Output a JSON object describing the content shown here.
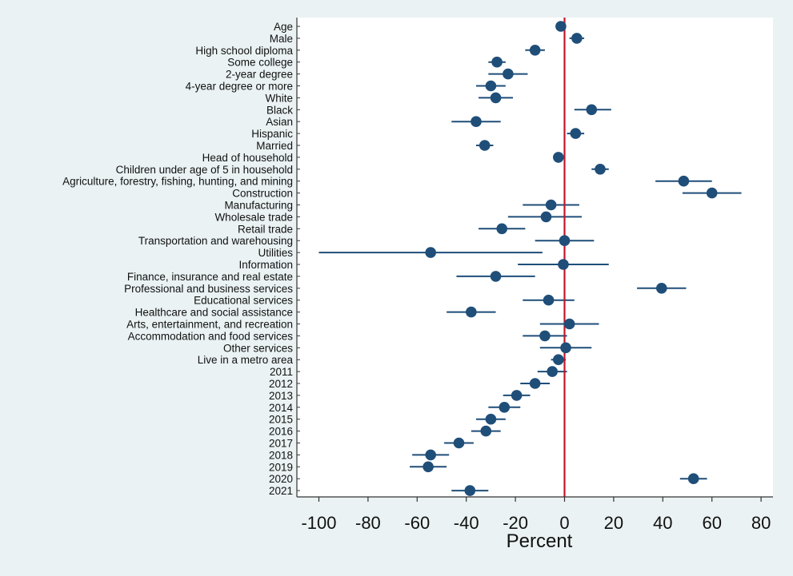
{
  "chart_data": {
    "type": "scatter",
    "title": "",
    "xlabel": "Percent",
    "ylabel": "",
    "xlim": [
      -106,
      85
    ],
    "x_ticks": [
      "-100",
      "-80",
      "-60",
      "-40",
      "-20",
      "0",
      "20",
      "40",
      "60",
      "80"
    ],
    "x_tick_values": [
      -100,
      -80,
      -60,
      -40,
      -20,
      0,
      20,
      40,
      60,
      80
    ],
    "reference_line_x": 0,
    "grid": false,
    "legend": "none",
    "colors": {
      "background": "#eaf2f3",
      "plot_area": "#ffffff",
      "marker": "#1f4e79",
      "reference_line": "#c0182b",
      "axis": "#333333"
    },
    "series": [
      {
        "categories": [
          "Age",
          "Male",
          "High school diploma",
          "Some college",
          "2-year degree",
          "4-year degree or more",
          "White",
          "Black",
          "Asian",
          "Hispanic",
          "Married",
          "Head of household",
          "Children under age of 5 in household",
          "Agriculture, forestry, fishing, hunting, and mining",
          "Construction",
          "Manufacturing",
          "Wholesale trade",
          "Retail trade",
          "Transportation and warehousing",
          "Utilities",
          "Information",
          "Finance, insurance and real estate",
          "Professional and business services",
          "Educational services",
          "Healthcare and social assistance",
          "Arts, entertainment, and recreation",
          "Accommodation and food services",
          "Other services",
          "Live in a metro area",
          "2011",
          "2012",
          "2013",
          "2014",
          "2015",
          "2016",
          "2017",
          "2018",
          "2019",
          "2020",
          "2021"
        ],
        "estimates": [
          -1.5,
          5,
          -12,
          -27.5,
          -23,
          -30,
          -28,
          11,
          -36,
          4.5,
          -32.5,
          -2.5,
          14.5,
          48.5,
          60,
          -5.5,
          -7.5,
          -25.5,
          0,
          -54.5,
          -0.5,
          -28,
          39.5,
          -6.5,
          -38,
          2,
          -8,
          0.5,
          -2.5,
          -5,
          -12,
          -19.5,
          -24.5,
          -30,
          -32,
          -43,
          -54.5,
          -55.5,
          52.5,
          -38.5
        ],
        "ci_low": [
          -2.5,
          2,
          -16,
          -31,
          -31,
          -36,
          -35,
          4,
          -46,
          1,
          -36,
          -4.5,
          11,
          37,
          48,
          -17,
          -23,
          -35,
          -12,
          -100,
          -19,
          -44,
          29.5,
          -17,
          -48,
          -10,
          -17,
          -10,
          -5.5,
          -11,
          -18,
          -25,
          -31,
          -36,
          -38,
          -49,
          -62,
          -63,
          47,
          -46
        ],
        "ci_high": [
          -0.5,
          8,
          -8,
          -24,
          -15,
          -24,
          -21,
          19,
          -26,
          8,
          -29,
          -0.5,
          18,
          60,
          72,
          6,
          7,
          -16,
          12,
          -9,
          18,
          -12,
          49.5,
          4,
          -28,
          14,
          1,
          11,
          0.5,
          1,
          -6,
          -14,
          -18,
          -24,
          -26,
          -37,
          -47,
          -48,
          58,
          -31
        ]
      }
    ]
  }
}
